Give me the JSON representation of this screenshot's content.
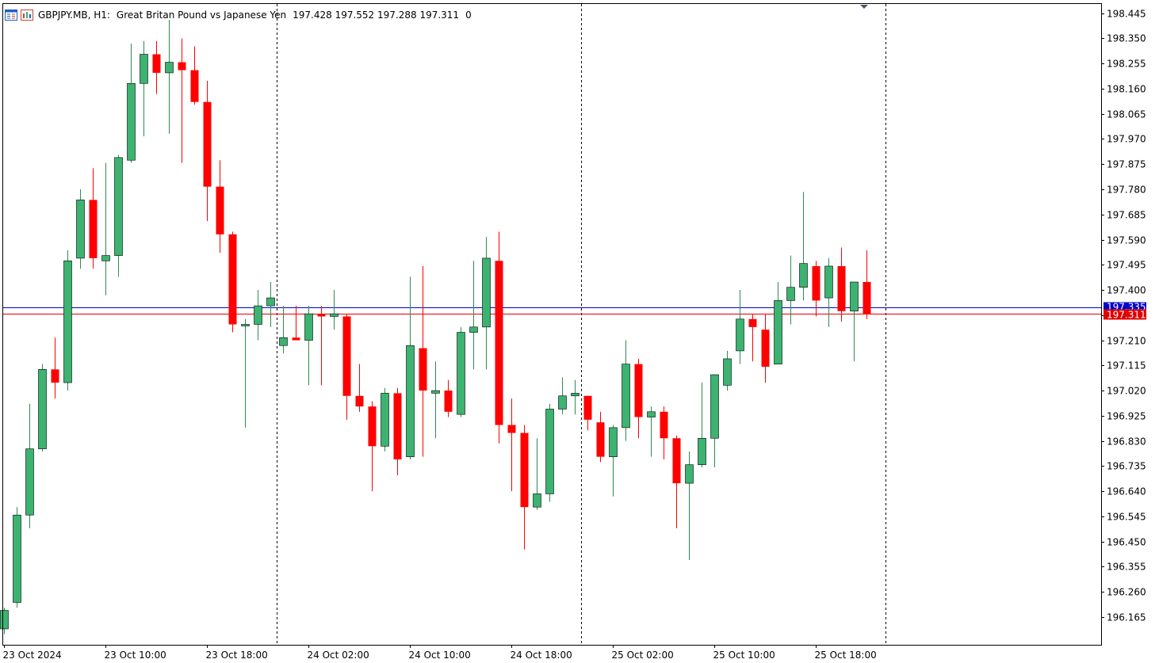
{
  "header": {
    "symbol": "GBPJPY.MB, H1:",
    "description": "Great Britan Pound vs Japanese Yen",
    "ohlc": "197.428 197.552 197.288 197.311",
    "volume": "0"
  },
  "colors": {
    "bull": "#3cb371",
    "bear": "#ff0000",
    "bid_line": "#0000cd",
    "ask_line": "#e00000",
    "axis": "#000000"
  },
  "icons": [
    "menu-grid-icon",
    "chart-window-icon"
  ],
  "chart_data": {
    "type": "candlestick",
    "ylim": [
      196.06,
      198.48
    ],
    "y_ticks": [
      196.165,
      196.26,
      196.355,
      196.45,
      196.545,
      196.64,
      196.735,
      196.83,
      196.925,
      197.02,
      197.115,
      197.21,
      197.305,
      197.4,
      197.495,
      197.59,
      197.685,
      197.78,
      197.875,
      197.97,
      198.065,
      198.16,
      198.255,
      198.35,
      198.445
    ],
    "x_labels": [
      {
        "index": 0,
        "label": "23 Oct 2024"
      },
      {
        "index": 8,
        "label": "23 Oct 10:00"
      },
      {
        "index": 16,
        "label": "23 Oct 18:00"
      },
      {
        "index": 24,
        "label": "24 Oct 02:00"
      },
      {
        "index": 32,
        "label": "24 Oct 10:00"
      },
      {
        "index": 40,
        "label": "24 Oct 18:00"
      },
      {
        "index": 48,
        "label": "25 Oct 02:00"
      },
      {
        "index": 56,
        "label": "25 Oct 10:00"
      },
      {
        "index": 64,
        "label": "25 Oct 18:00"
      }
    ],
    "day_separators": [
      21.5,
      45.5,
      69.5
    ],
    "bid_price": 197.335,
    "bid_label": "197.335",
    "ask_price": 197.311,
    "ask_label": "197.311",
    "candles": [
      {
        "o": 196.12,
        "h": 196.2,
        "l": 196.1,
        "c": 196.19
      },
      {
        "o": 196.22,
        "h": 196.58,
        "l": 196.2,
        "c": 196.55
      },
      {
        "o": 196.55,
        "h": 196.97,
        "l": 196.5,
        "c": 196.8
      },
      {
        "o": 196.8,
        "h": 197.12,
        "l": 196.79,
        "c": 197.1
      },
      {
        "o": 197.1,
        "h": 197.22,
        "l": 196.99,
        "c": 197.05
      },
      {
        "o": 197.05,
        "h": 197.55,
        "l": 197.02,
        "c": 197.51
      },
      {
        "o": 197.52,
        "h": 197.78,
        "l": 197.48,
        "c": 197.74
      },
      {
        "o": 197.74,
        "h": 197.86,
        "l": 197.48,
        "c": 197.52
      },
      {
        "o": 197.51,
        "h": 197.88,
        "l": 197.38,
        "c": 197.53
      },
      {
        "o": 197.53,
        "h": 197.91,
        "l": 197.45,
        "c": 197.9
      },
      {
        "o": 197.89,
        "h": 198.33,
        "l": 197.88,
        "c": 198.18
      },
      {
        "o": 198.18,
        "h": 198.34,
        "l": 197.98,
        "c": 198.29
      },
      {
        "o": 198.29,
        "h": 198.34,
        "l": 198.14,
        "c": 198.22
      },
      {
        "o": 198.22,
        "h": 198.42,
        "l": 197.99,
        "c": 198.26
      },
      {
        "o": 198.26,
        "h": 198.35,
        "l": 197.88,
        "c": 198.23
      },
      {
        "o": 198.23,
        "h": 198.32,
        "l": 198.1,
        "c": 198.11
      },
      {
        "o": 198.11,
        "h": 198.19,
        "l": 197.66,
        "c": 197.79
      },
      {
        "o": 197.79,
        "h": 197.89,
        "l": 197.54,
        "c": 197.61
      },
      {
        "o": 197.61,
        "h": 197.62,
        "l": 197.24,
        "c": 197.27
      },
      {
        "o": 197.27,
        "h": 197.29,
        "l": 196.88,
        "c": 197.27
      },
      {
        "o": 197.27,
        "h": 197.4,
        "l": 197.21,
        "c": 197.34
      },
      {
        "o": 197.34,
        "h": 197.43,
        "l": 197.26,
        "c": 197.37
      },
      {
        "o": 197.19,
        "h": 197.34,
        "l": 197.16,
        "c": 197.22
      },
      {
        "o": 197.22,
        "h": 197.34,
        "l": 197.21,
        "c": 197.21
      },
      {
        "o": 197.21,
        "h": 197.34,
        "l": 197.04,
        "c": 197.31
      },
      {
        "o": 197.31,
        "h": 197.34,
        "l": 197.04,
        "c": 197.3
      },
      {
        "o": 197.3,
        "h": 197.4,
        "l": 197.25,
        "c": 197.31
      },
      {
        "o": 197.3,
        "h": 197.31,
        "l": 196.91,
        "c": 197.0
      },
      {
        "o": 197.0,
        "h": 197.12,
        "l": 196.94,
        "c": 196.96
      },
      {
        "o": 196.96,
        "h": 196.98,
        "l": 196.64,
        "c": 196.81
      },
      {
        "o": 196.81,
        "h": 197.03,
        "l": 196.79,
        "c": 197.01
      },
      {
        "o": 197.01,
        "h": 197.03,
        "l": 196.7,
        "c": 196.76
      },
      {
        "o": 196.77,
        "h": 197.45,
        "l": 196.76,
        "c": 197.19
      },
      {
        "o": 197.18,
        "h": 197.49,
        "l": 196.77,
        "c": 197.02
      },
      {
        "o": 197.01,
        "h": 197.13,
        "l": 196.84,
        "c": 197.02
      },
      {
        "o": 197.02,
        "h": 197.06,
        "l": 196.92,
        "c": 196.94
      },
      {
        "o": 196.93,
        "h": 197.26,
        "l": 196.92,
        "c": 197.24
      },
      {
        "o": 197.24,
        "h": 197.51,
        "l": 197.1,
        "c": 197.26
      },
      {
        "o": 197.26,
        "h": 197.6,
        "l": 197.1,
        "c": 197.52
      },
      {
        "o": 197.51,
        "h": 197.62,
        "l": 196.82,
        "c": 196.89
      },
      {
        "o": 196.89,
        "h": 196.99,
        "l": 196.64,
        "c": 196.86
      },
      {
        "o": 196.86,
        "h": 196.89,
        "l": 196.42,
        "c": 196.58
      },
      {
        "o": 196.58,
        "h": 196.84,
        "l": 196.57,
        "c": 196.63
      },
      {
        "o": 196.63,
        "h": 196.97,
        "l": 196.6,
        "c": 196.95
      },
      {
        "o": 196.95,
        "h": 197.07,
        "l": 196.93,
        "c": 197.0
      },
      {
        "o": 197.0,
        "h": 197.06,
        "l": 196.93,
        "c": 197.01
      },
      {
        "o": 197.0,
        "h": 197.0,
        "l": 196.87,
        "c": 196.91
      },
      {
        "o": 196.9,
        "h": 196.94,
        "l": 196.75,
        "c": 196.77
      },
      {
        "o": 196.77,
        "h": 196.89,
        "l": 196.62,
        "c": 196.88
      },
      {
        "o": 196.88,
        "h": 197.21,
        "l": 196.83,
        "c": 197.12
      },
      {
        "o": 197.12,
        "h": 197.14,
        "l": 196.84,
        "c": 196.92
      },
      {
        "o": 196.92,
        "h": 196.96,
        "l": 196.77,
        "c": 196.94
      },
      {
        "o": 196.94,
        "h": 196.96,
        "l": 196.76,
        "c": 196.84
      },
      {
        "o": 196.84,
        "h": 196.85,
        "l": 196.5,
        "c": 196.67
      },
      {
        "o": 196.67,
        "h": 196.79,
        "l": 196.38,
        "c": 196.74
      },
      {
        "o": 196.74,
        "h": 197.05,
        "l": 196.73,
        "c": 196.84
      },
      {
        "o": 196.84,
        "h": 197.08,
        "l": 196.73,
        "c": 197.08
      },
      {
        "o": 197.04,
        "h": 197.17,
        "l": 197.02,
        "c": 197.14
      },
      {
        "o": 197.17,
        "h": 197.4,
        "l": 197.12,
        "c": 197.29
      },
      {
        "o": 197.29,
        "h": 197.31,
        "l": 197.13,
        "c": 197.26
      },
      {
        "o": 197.25,
        "h": 197.31,
        "l": 197.05,
        "c": 197.11
      },
      {
        "o": 197.12,
        "h": 197.43,
        "l": 197.12,
        "c": 197.36
      },
      {
        "o": 197.36,
        "h": 197.53,
        "l": 197.27,
        "c": 197.41
      },
      {
        "o": 197.41,
        "h": 197.77,
        "l": 197.36,
        "c": 197.5
      },
      {
        "o": 197.49,
        "h": 197.51,
        "l": 197.3,
        "c": 197.36
      },
      {
        "o": 197.37,
        "h": 197.52,
        "l": 197.26,
        "c": 197.49
      },
      {
        "o": 197.49,
        "h": 197.56,
        "l": 197.28,
        "c": 197.32
      },
      {
        "o": 197.32,
        "h": 197.42,
        "l": 197.13,
        "c": 197.43
      },
      {
        "o": 197.43,
        "h": 197.55,
        "l": 197.29,
        "c": 197.31
      }
    ]
  }
}
